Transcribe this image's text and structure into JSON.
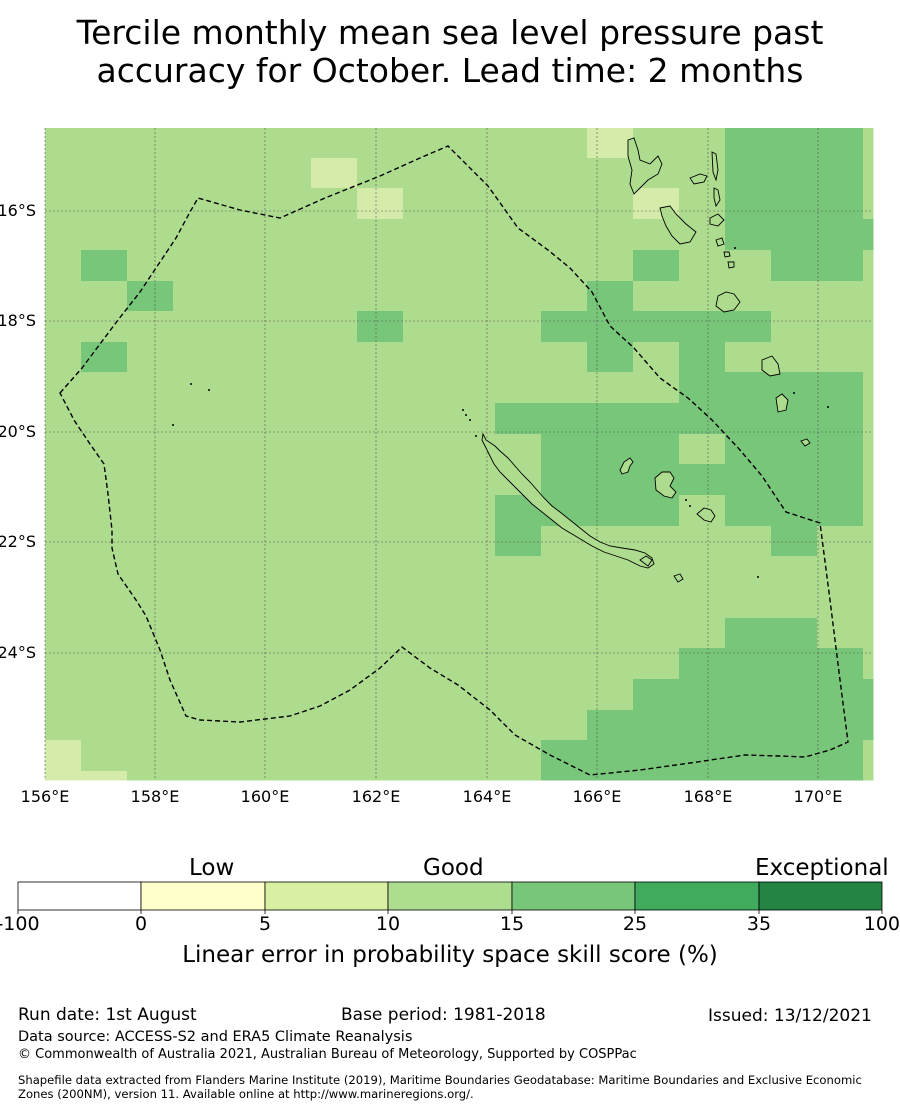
{
  "title": {
    "line1": "Tercile monthly mean sea level pressure past",
    "line2": "accuracy for October. Lead time: 2 months"
  },
  "map": {
    "lon_range": [
      156,
      171
    ],
    "lat_range": [
      -14.7,
      -26.5
    ],
    "lat_labels": [
      "16°S",
      "18°S",
      "20°S",
      "22°S",
      "24°S"
    ],
    "lon_labels": [
      "156°E",
      "158°E",
      "160°E",
      "162°E",
      "164°E",
      "166°E",
      "168°E",
      "170°E"
    ],
    "grid_colors": {
      "1": "#d5ebaa",
      "2": "#aedc8e",
      "3": "#78c679"
    },
    "background_color": "#aedc8e",
    "grid": true,
    "features": [
      "New Caledonia",
      "Vanuatu",
      "Loyalty Islands",
      "EEZ boundary (dashed)"
    ]
  },
  "colorbar": {
    "categories": [
      "Low",
      "Good",
      "Exceptional"
    ],
    "ticks": [
      "-100",
      "0",
      "5",
      "10",
      "15",
      "25",
      "35",
      "100"
    ],
    "colors": [
      "#ffffff",
      "#ffffcc",
      "#d9f0a3",
      "#addd8e",
      "#78c679",
      "#41ab5d",
      "#238443"
    ],
    "label": "Linear error in probability space skill score (%)"
  },
  "footer": {
    "run_date": "Run date: 1st August",
    "base_period": "Base period: 1981-2018",
    "issued": "Issued: 13/12/2021",
    "data_source": "Data source: ACCESS-S2 and ERA5 Climate Reanalysis",
    "copyright": "© Commonwealth of Australia 2021, Australian Bureau of Meteorology, Supported by COSPPac",
    "shapefile1": "Shapefile data extracted from Flanders Marine Institute (2019), Maritime Boundaries Geodatabase: Maritime Boundaries and Exclusive Economic",
    "shapefile2": "Zones (200NM), version 11. Available online at http://www.marineregions.org/."
  }
}
